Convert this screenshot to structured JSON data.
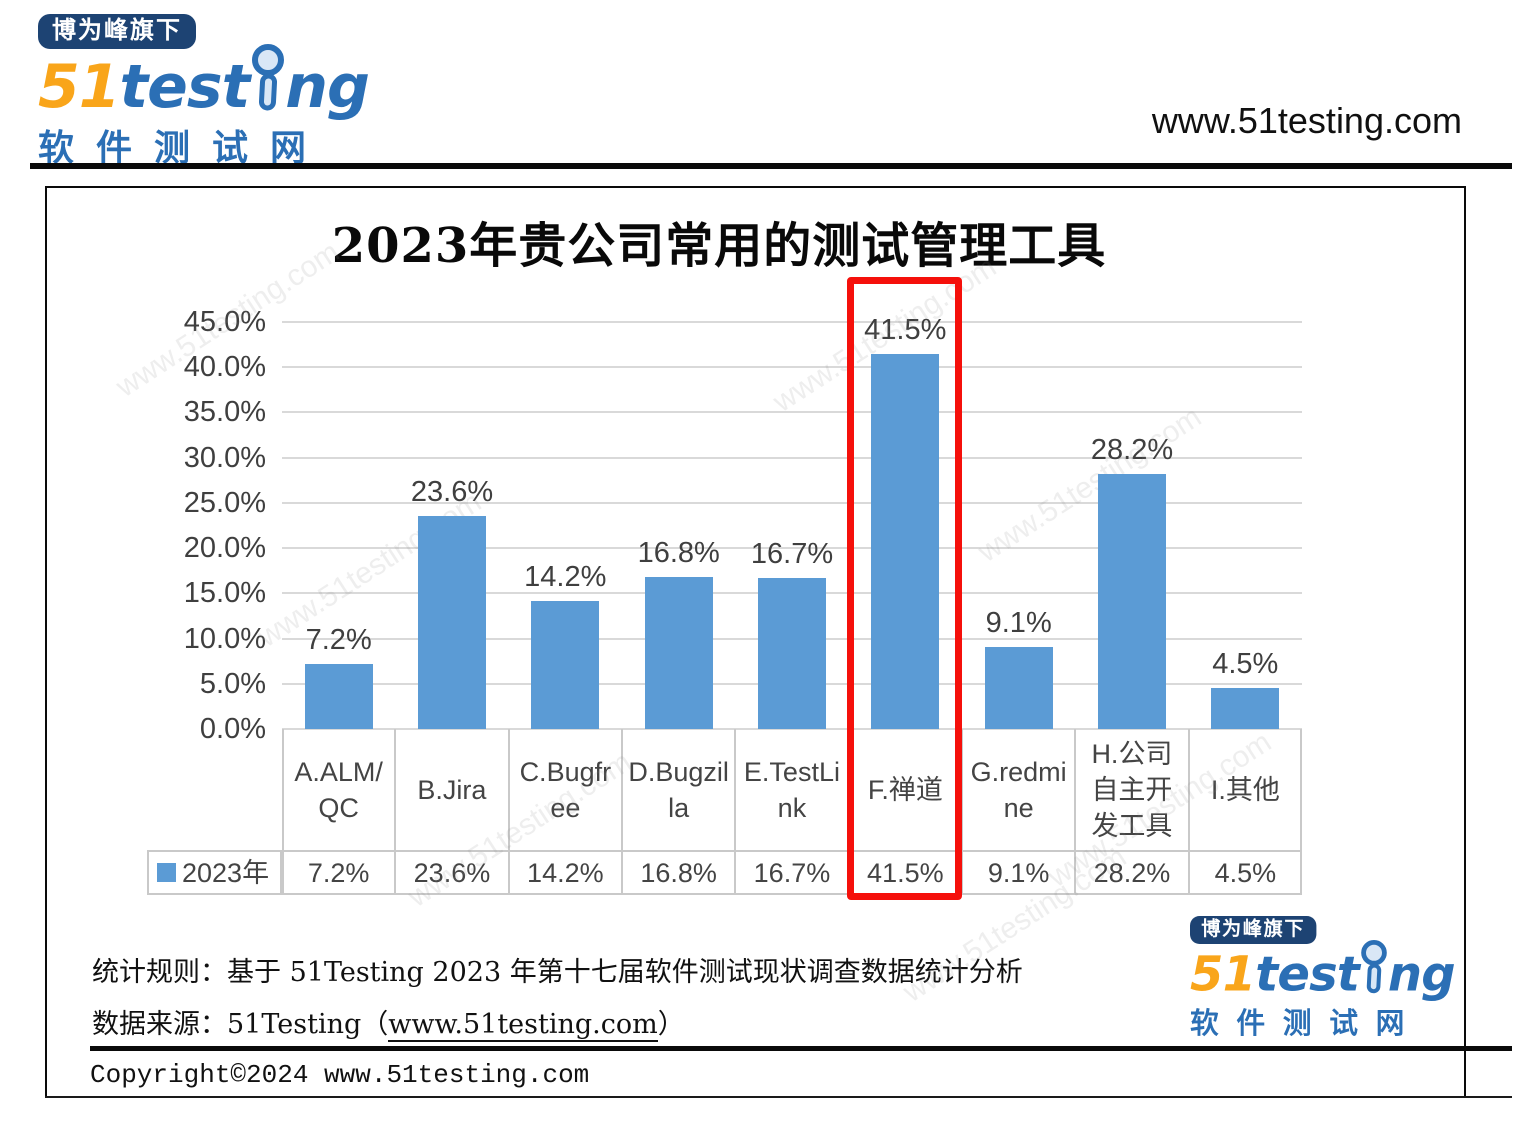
{
  "header": {
    "site_url": "www.51testing.com"
  },
  "logo": {
    "badge": "博为峰旗下",
    "brand_51": "51",
    "brand_test": "test",
    "brand_ng": "ng",
    "subtitle": "软件测试网"
  },
  "chart_data": {
    "type": "bar",
    "title": "2023年贵公司常用的测试管理工具",
    "categories": [
      "A.ALM/QC",
      "B.Jira",
      "C.Bugfree",
      "D.Bugzilla",
      "E.TestLink",
      "F.禅道",
      "G.redmine",
      "H.公司自主开发工具",
      "I.其他"
    ],
    "series": [
      {
        "name": "2023年",
        "values": [
          7.2,
          23.6,
          14.2,
          16.8,
          16.7,
          41.5,
          9.1,
          28.2,
          4.5
        ]
      }
    ],
    "value_labels": [
      "7.2%",
      "23.6%",
      "14.2%",
      "16.8%",
      "16.7%",
      "41.5%",
      "9.1%",
      "28.2%",
      "4.5%"
    ],
    "y_ticks": [
      "45.0%",
      "40.0%",
      "35.0%",
      "30.0%",
      "25.0%",
      "20.0%",
      "15.0%",
      "10.0%",
      "5.0%",
      "0.0%"
    ],
    "ylim": [
      0,
      45
    ],
    "grid": true,
    "legend_position": "data-table-left",
    "bar_color": "#5b9bd5",
    "highlight": {
      "category": "F.禅道",
      "value_label": "41.5%",
      "color": "#f5100b"
    }
  },
  "footer": {
    "stats_rule": "统计规则：基于 51Testing 2023 年第十七届软件测试现状调查数据统计分析",
    "source_prefix": "数据来源：51Testing（",
    "source_link": "www.51testing.com",
    "source_suffix": "）",
    "copyright": "Copyright©2024 www.51testing.com"
  },
  "watermark": "www.51testing.com",
  "colors": {
    "bar": "#5b9bd5",
    "highlight_red": "#f5100b",
    "brand_blue": "#2b6fb5",
    "brand_orange": "#f9a51a",
    "badge_navy": "#1d4373"
  }
}
